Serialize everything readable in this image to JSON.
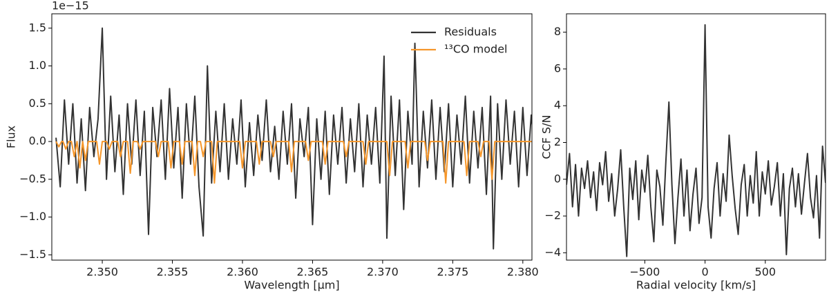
{
  "chart_data": [
    {
      "type": "line",
      "y_offset_label": "1e−15",
      "xlabel": "Wavelength [μm]",
      "ylabel": "Flux",
      "xlim": [
        2.3464,
        2.38065
      ],
      "ylim": [
        -1.57,
        1.69
      ],
      "xticks": [
        {
          "value": 2.35,
          "label": "2.350"
        },
        {
          "value": 2.355,
          "label": "2.355"
        },
        {
          "value": 2.36,
          "label": "2.360"
        },
        {
          "value": 2.365,
          "label": "2.365"
        },
        {
          "value": 2.37,
          "label": "2.370"
        },
        {
          "value": 2.375,
          "label": "2.375"
        },
        {
          "value": 2.38,
          "label": "2.380"
        }
      ],
      "yticks": [
        {
          "value": -1.5,
          "label": "−1.5"
        },
        {
          "value": -1.0,
          "label": "−1.0"
        },
        {
          "value": -0.5,
          "label": "−0.5"
        },
        {
          "value": 0,
          "label": "0.0"
        },
        {
          "value": 0.5,
          "label": "0.5"
        },
        {
          "value": 1.0,
          "label": "1.0"
        },
        {
          "value": 1.5,
          "label": "1.5"
        }
      ],
      "legend": "upper right",
      "series": [
        {
          "name": "Residuals",
          "color": "#333333",
          "x": [
            2.3467,
            2.347,
            2.3473,
            2.3476,
            2.3479,
            2.3482,
            2.3485,
            2.3488,
            2.3491,
            2.3494,
            2.3497,
            2.35,
            2.3503,
            2.3506,
            2.3509,
            2.3512,
            2.3515,
            2.3518,
            2.3521,
            2.3524,
            2.3527,
            2.353,
            2.3533,
            2.3536,
            2.3539,
            2.3542,
            2.3545,
            2.3548,
            2.3551,
            2.3554,
            2.3557,
            2.356,
            2.3563,
            2.3566,
            2.3569,
            2.3572,
            2.3575,
            2.3578,
            2.3581,
            2.3584,
            2.3587,
            2.359,
            2.3593,
            2.3596,
            2.3599,
            2.3602,
            2.3605,
            2.3608,
            2.3611,
            2.3614,
            2.3617,
            2.362,
            2.3623,
            2.3626,
            2.3629,
            2.3632,
            2.3635,
            2.3638,
            2.3641,
            2.3644,
            2.3647,
            2.365,
            2.3653,
            2.3656,
            2.3659,
            2.3662,
            2.3665,
            2.3668,
            2.3671,
            2.3674,
            2.3677,
            2.368,
            2.3683,
            2.3686,
            2.3689,
            2.3692,
            2.3695,
            2.3698,
            2.3701,
            2.3703,
            2.3706,
            2.3709,
            2.3712,
            2.3715,
            2.3718,
            2.3721,
            2.3723,
            2.3726,
            2.3729,
            2.3732,
            2.3735,
            2.3738,
            2.3741,
            2.3744,
            2.3747,
            2.375,
            2.3753,
            2.3756,
            2.3759,
            2.3762,
            2.3765,
            2.3768,
            2.3771,
            2.3774,
            2.3777,
            2.3779,
            2.3782,
            2.3785,
            2.3788,
            2.3791,
            2.3794,
            2.3797,
            2.38,
            2.3803,
            2.3806,
            2.3809,
            2.3812
          ],
          "values": [
            0.05,
            -0.6,
            0.55,
            -0.3,
            0.5,
            -0.55,
            0.3,
            -0.65,
            0.45,
            -0.2,
            0.3,
            1.5,
            -0.5,
            0.6,
            -0.4,
            0.35,
            -0.7,
            0.5,
            -0.3,
            0.55,
            -0.45,
            0.4,
            -1.23,
            0.45,
            -0.2,
            0.55,
            -0.5,
            0.7,
            -0.35,
            0.45,
            -0.75,
            0.5,
            -0.3,
            0.6,
            -0.6,
            -1.25,
            1.0,
            -0.55,
            0.4,
            -0.4,
            0.5,
            -0.5,
            0.3,
            -0.3,
            0.55,
            -0.6,
            0.25,
            -0.45,
            0.35,
            -0.25,
            0.55,
            -0.4,
            0.2,
            -0.5,
            0.4,
            -0.3,
            0.5,
            -0.75,
            0.3,
            -0.2,
            0.45,
            -1.1,
            0.3,
            -0.5,
            0.4,
            -0.7,
            0.35,
            -0.3,
            0.45,
            -0.55,
            0.3,
            -0.4,
            0.5,
            -0.6,
            0.35,
            -0.3,
            0.45,
            -0.55,
            1.13,
            -1.28,
            0.6,
            -0.45,
            0.55,
            -0.9,
            0.4,
            -0.3,
            1.3,
            -0.6,
            0.4,
            -0.35,
            0.55,
            -0.5,
            0.45,
            -0.4,
            0.5,
            -0.6,
            0.35,
            -0.3,
            0.6,
            -0.55,
            0.4,
            -0.35,
            0.45,
            -0.7,
            0.6,
            -1.42,
            0.5,
            -0.5,
            0.55,
            -0.3,
            0.4,
            -0.6,
            0.45,
            -0.45,
            0.35,
            -0.2,
            -0.35
          ]
        },
        {
          "name": "¹³CO model",
          "color": "#f5962a",
          "x": [
            2.3467,
            2.3469,
            2.3471,
            2.3472,
            2.3474,
            2.3476,
            2.3478,
            2.348,
            2.3482,
            2.3482,
            2.3484,
            2.3486,
            2.3486,
            2.3488,
            2.349,
            2.3496,
            2.3498,
            2.35,
            2.3503,
            2.3505,
            2.3507,
            2.3511,
            2.3513,
            2.3515,
            2.3518,
            2.352,
            2.3522,
            2.3525,
            2.3527,
            2.3529,
            2.3538,
            2.354,
            2.3542,
            2.3547,
            2.3549,
            2.3551,
            2.3555,
            2.3557,
            2.3559,
            2.3564,
            2.3566,
            2.3568,
            2.357,
            2.3572,
            2.3574,
            2.3578,
            2.358,
            2.3582,
            2.3598,
            2.36,
            2.3602,
            2.361,
            2.3612,
            2.3614,
            2.362,
            2.3622,
            2.3624,
            2.3633,
            2.3635,
            2.3637,
            2.3645,
            2.3647,
            2.3649,
            2.3657,
            2.3659,
            2.3661,
            2.3672,
            2.3674,
            2.3676,
            2.3686,
            2.3688,
            2.369,
            2.3703,
            2.3705,
            2.3707,
            2.3716,
            2.3718,
            2.372,
            2.373,
            2.3732,
            2.3734,
            2.3743,
            2.3745,
            2.3747,
            2.3758,
            2.376,
            2.3762,
            2.3768,
            2.377,
            2.3772,
            2.3776,
            2.3778,
            2.378,
            2.3812
          ],
          "values": [
            0,
            -0.07,
            0,
            0,
            -0.1,
            0,
            0,
            -0.2,
            0,
            0,
            -0.35,
            0,
            0,
            -0.25,
            0,
            0,
            -0.3,
            0,
            0,
            -0.1,
            0,
            0,
            -0.2,
            0,
            0,
            -0.42,
            0,
            0,
            -0.1,
            0,
            0,
            -0.2,
            0,
            0,
            -0.35,
            0,
            0,
            -0.3,
            0,
            0,
            -0.45,
            0,
            0,
            -0.2,
            0,
            0,
            -0.55,
            0,
            0,
            -0.35,
            0,
            0,
            -0.3,
            0,
            0,
            -0.2,
            0,
            0,
            -0.4,
            0,
            0,
            -0.25,
            0,
            0,
            -0.3,
            0,
            0,
            -0.2,
            0,
            0,
            -0.3,
            0,
            0,
            -0.45,
            0,
            0,
            -0.35,
            0,
            0,
            -0.25,
            0,
            0,
            -0.55,
            0,
            0,
            -0.45,
            0,
            0,
            -0.2,
            0,
            0,
            -0.5,
            0,
            0
          ]
        }
      ]
    },
    {
      "type": "line",
      "xlabel": "Radial velocity [km/s]",
      "ylabel": "CCF S/N",
      "xlim": [
        -1150,
        1000
      ],
      "ylim": [
        -4.4,
        9.0
      ],
      "xticks": [
        {
          "value": -500,
          "label": "−500"
        },
        0,
        500
      ],
      "yticks": [
        {
          "value": -4,
          "label": "−4"
        },
        {
          "value": -2,
          "label": "−2"
        },
        0,
        2,
        4,
        6,
        8
      ],
      "series": [
        {
          "color": "#333333",
          "x": [
            -1150,
            -1125,
            -1100,
            -1075,
            -1050,
            -1025,
            -1000,
            -975,
            -950,
            -925,
            -900,
            -875,
            -850,
            -825,
            -800,
            -775,
            -750,
            -725,
            -700,
            -675,
            -650,
            -625,
            -600,
            -575,
            -550,
            -525,
            -500,
            -475,
            -450,
            -425,
            -400,
            -375,
            -350,
            -325,
            -300,
            -275,
            -250,
            -225,
            -200,
            -175,
            -150,
            -125,
            -100,
            -75,
            -50,
            -25,
            0,
            25,
            50,
            75,
            100,
            125,
            150,
            175,
            200,
            225,
            250,
            275,
            300,
            325,
            350,
            375,
            400,
            425,
            450,
            475,
            500,
            525,
            550,
            575,
            600,
            625,
            650,
            675,
            700,
            725,
            750,
            775,
            800,
            825,
            850,
            875,
            900,
            925,
            950,
            975,
            1000
          ],
          "values": [
            -0.3,
            1.4,
            -1.5,
            0.8,
            -2.0,
            0.6,
            -0.5,
            1.0,
            -1.0,
            0.4,
            -1.7,
            0.9,
            -0.3,
            1.5,
            -1.2,
            0.3,
            -2.0,
            -0.5,
            1.6,
            -1.5,
            -4.2,
            0.6,
            -1.1,
            1.0,
            -2.2,
            0.5,
            -0.7,
            1.3,
            -1.5,
            -3.4,
            0.5,
            -0.4,
            -2.5,
            1.0,
            4.2,
            -0.3,
            -3.5,
            -1.0,
            1.1,
            -2.0,
            0.5,
            -2.8,
            -0.8,
            0.6,
            -2.4,
            -1.0,
            8.4,
            -1.5,
            -3.2,
            -0.5,
            0.9,
            -2.0,
            0.3,
            -1.2,
            2.4,
            0.2,
            -1.6,
            -3.0,
            -0.3,
            0.8,
            -2.0,
            0.2,
            -1.3,
            1.5,
            -2.0,
            0.4,
            -0.8,
            1.0,
            -1.4,
            -0.4,
            0.9,
            -2.0,
            0.3,
            -4.1,
            -0.5,
            0.6,
            -1.5,
            0.3,
            -1.9,
            -0.2,
            1.4,
            -1.0,
            -2.1,
            0.2,
            -3.2,
            1.8,
            -0.2
          ]
        }
      ]
    }
  ]
}
